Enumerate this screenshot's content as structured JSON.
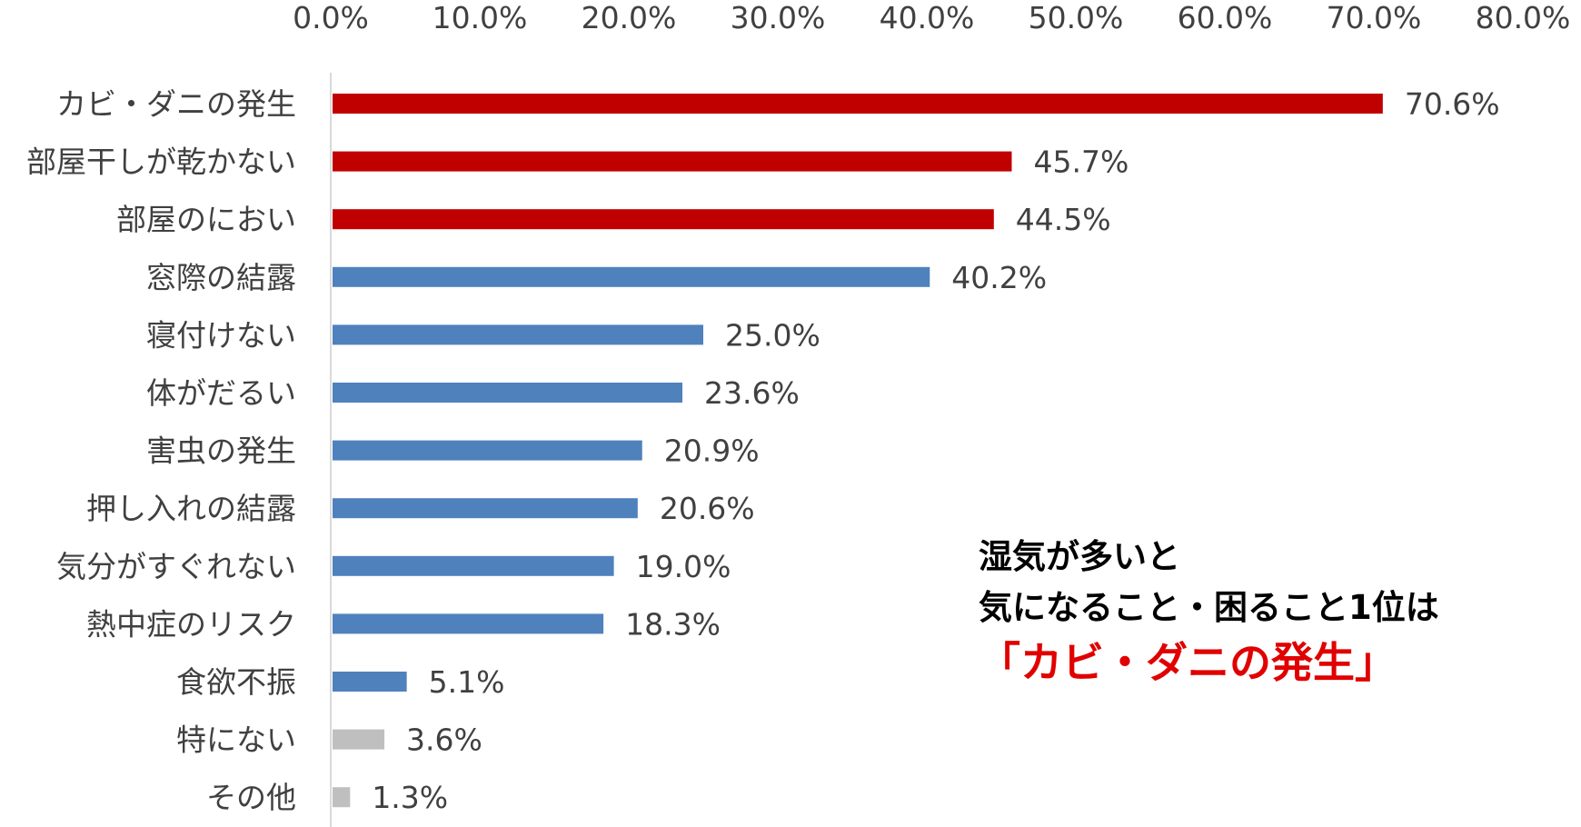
{
  "chart_data": {
    "type": "bar",
    "orientation": "horizontal",
    "x_axis_position": "top",
    "grid": false,
    "xlim": [
      0,
      80
    ],
    "ticks": [
      "0.0%",
      "10.0%",
      "20.0%",
      "30.0%",
      "40.0%",
      "50.0%",
      "60.0%",
      "70.0%",
      "80.0%"
    ],
    "categories": [
      "カビ・ダニの発生",
      "部屋干しが乾かない",
      "部屋のにおい",
      "窓際の結露",
      "寝付けない",
      "体がだるい",
      "害虫の発生",
      "押し入れの結露",
      "気分がすぐれない",
      "熱中症のリスク",
      "食欲不振",
      "特にない",
      "その他"
    ],
    "values": [
      70.6,
      45.7,
      44.5,
      40.2,
      25.0,
      23.6,
      20.9,
      20.6,
      19.0,
      18.3,
      5.1,
      3.6,
      1.3
    ],
    "value_labels": [
      "70.6%",
      "45.7%",
      "44.5%",
      "40.2%",
      "25.0%",
      "23.6%",
      "20.9%",
      "20.6%",
      "19.0%",
      "18.3%",
      "5.1%",
      "3.6%",
      "1.3%"
    ],
    "bar_colors": [
      "#c00000",
      "#c00000",
      "#c00000",
      "#4f81bd",
      "#4f81bd",
      "#4f81bd",
      "#4f81bd",
      "#4f81bd",
      "#4f81bd",
      "#4f81bd",
      "#4f81bd",
      "#bfbfbf",
      "#bfbfbf"
    ]
  },
  "callout": {
    "line1": "湿気が多いと",
    "line2": "気になること・困ること1位は",
    "highlight": "「カビ・ダニの発生」"
  }
}
